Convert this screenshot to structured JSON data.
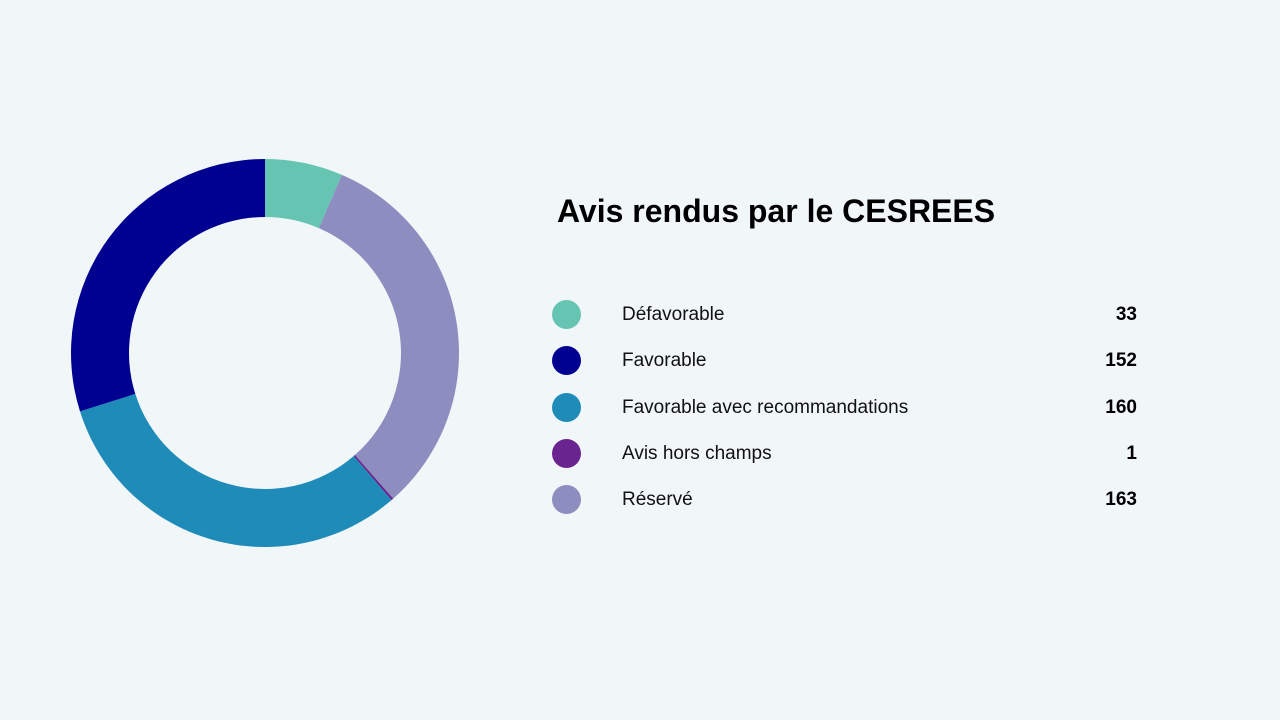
{
  "chart_data": {
    "type": "pie",
    "title": "Avis rendus par le CESREES",
    "series": [
      {
        "name": "Défavorable",
        "value": 33,
        "color": "#66c5b2"
      },
      {
        "name": "Favorable",
        "value": 152,
        "color": "#000091"
      },
      {
        "name": "Favorable avec recommandations",
        "value": 160,
        "color": "#1f8bb9"
      },
      {
        "name": "Avis hors champs",
        "value": 1,
        "color": "#6a2490"
      },
      {
        "name": "Réservé",
        "value": 163,
        "color": "#8e8dbf"
      }
    ],
    "slice_order": [
      "Défavorable",
      "Réservé",
      "Avis hors champs",
      "Favorable avec recommandations",
      "Favorable"
    ],
    "donut": true,
    "legend_position": "right"
  }
}
